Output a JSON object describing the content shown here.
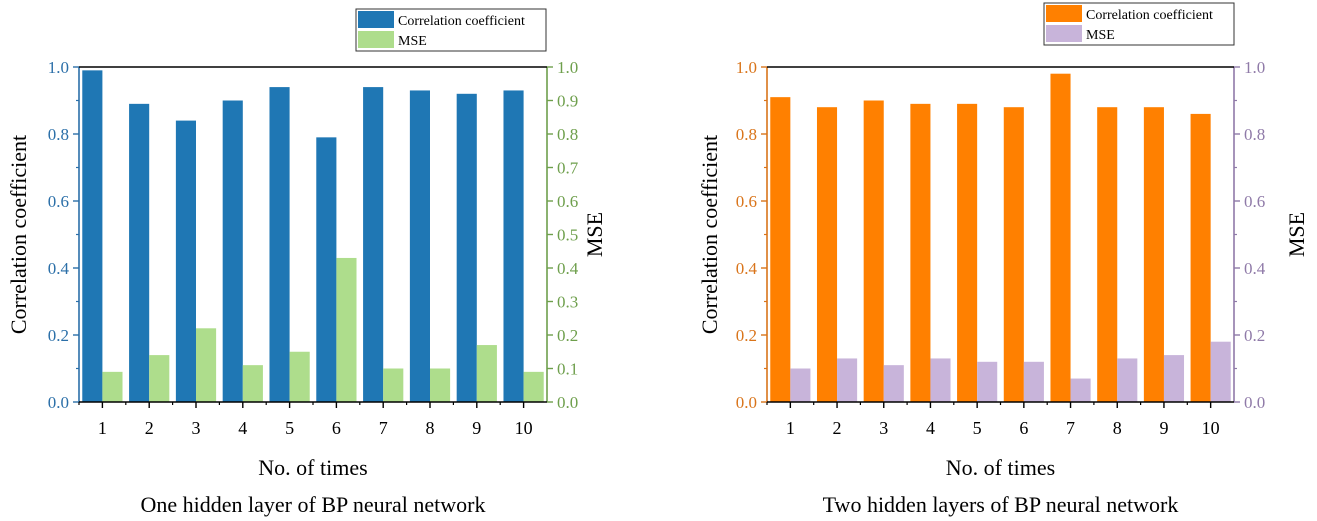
{
  "chart_data": [
    {
      "type": "bar",
      "title": "",
      "caption": "One hidden layer of BP neural network",
      "xlabel": "No. of times",
      "ylabel": "Correlation coefficient",
      "y2label": "MSE",
      "categories": [
        "1",
        "2",
        "3",
        "4",
        "5",
        "6",
        "7",
        "8",
        "9",
        "10"
      ],
      "ylim": [
        0,
        1.0
      ],
      "y2lim": [
        0,
        1.0
      ],
      "yticks": [
        "0.0",
        "0.2",
        "0.4",
        "0.6",
        "0.8",
        "1.0"
      ],
      "y2ticks": [
        "0.0",
        "0.1",
        "0.2",
        "0.3",
        "0.4",
        "0.5",
        "0.6",
        "0.7",
        "0.8",
        "0.9",
        "1.0"
      ],
      "legend_position": "top-right",
      "grid": false,
      "series": [
        {
          "name": "Correlation coefficient",
          "axis": "left",
          "color": "#1f77b4",
          "values": [
            0.99,
            0.89,
            0.84,
            0.9,
            0.94,
            0.79,
            0.94,
            0.93,
            0.92,
            0.93
          ]
        },
        {
          "name": "MSE",
          "axis": "right",
          "color": "#aedd8c",
          "values": [
            0.09,
            0.14,
            0.22,
            0.11,
            0.15,
            0.43,
            0.1,
            0.1,
            0.17,
            0.09
          ]
        }
      ],
      "colors": {
        "left_axis": "#2b6fa8",
        "right_axis": "#6e9f4c"
      }
    },
    {
      "type": "bar",
      "title": "",
      "caption": "Two hidden layers of BP neural network",
      "xlabel": "No. of times",
      "ylabel": "Correlation coefficient",
      "y2label": "MSE",
      "categories": [
        "1",
        "2",
        "3",
        "4",
        "5",
        "6",
        "7",
        "8",
        "9",
        "10"
      ],
      "ylim": [
        0,
        1.0
      ],
      "y2lim": [
        0,
        1.0
      ],
      "yticks": [
        "0.0",
        "0.2",
        "0.4",
        "0.6",
        "0.8",
        "1.0"
      ],
      "y2ticks": [
        "0.0",
        "0.2",
        "0.4",
        "0.6",
        "0.8",
        "1.0"
      ],
      "legend_position": "top-right",
      "grid": false,
      "series": [
        {
          "name": "Correlation coefficient",
          "axis": "left",
          "color": "#ff8000",
          "values": [
            0.91,
            0.88,
            0.9,
            0.89,
            0.89,
            0.88,
            0.98,
            0.88,
            0.88,
            0.86
          ]
        },
        {
          "name": "MSE",
          "axis": "right",
          "color": "#c8b4da",
          "values": [
            0.1,
            0.13,
            0.11,
            0.13,
            0.12,
            0.12,
            0.07,
            0.13,
            0.14,
            0.18
          ]
        }
      ],
      "colors": {
        "left_axis": "#d9741a",
        "right_axis": "#8f7aa8"
      }
    }
  ]
}
